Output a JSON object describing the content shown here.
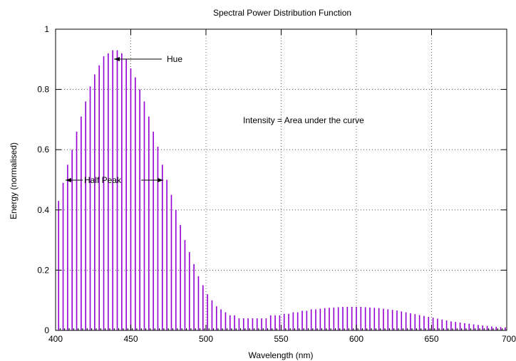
{
  "chart_data": {
    "type": "bar",
    "title": "Spectral Power Distribution Function",
    "xlabel": "Wavelength (nm)",
    "ylabel": "Energy (normalised)",
    "xlim": [
      400,
      700
    ],
    "ylim": [
      0,
      1
    ],
    "xticks": [
      400,
      450,
      500,
      550,
      600,
      650,
      700
    ],
    "yticks": [
      0,
      0.2,
      0.4,
      0.6,
      0.8,
      1
    ],
    "xtick_labels": [
      "400",
      "450",
      "500",
      "550",
      "600",
      "650",
      "700"
    ],
    "ytick_labels": [
      "0",
      "0.2",
      "0.4",
      "0.6",
      "0.8",
      "1"
    ],
    "grid": true,
    "bar_color": "#9400d3",
    "annotations": {
      "hue": "Hue",
      "half_peak": "Half Peak",
      "intensity": "Intensity = Area under the curve"
    },
    "x_step": 3,
    "x": [
      402,
      405,
      408,
      411,
      414,
      417,
      420,
      423,
      426,
      429,
      432,
      435,
      438,
      441,
      444,
      447,
      450,
      453,
      456,
      459,
      462,
      465,
      468,
      471,
      474,
      477,
      480,
      483,
      486,
      489,
      492,
      495,
      498,
      501,
      504,
      507,
      510,
      513,
      516,
      519,
      522,
      525,
      528,
      531,
      534,
      537,
      540,
      543,
      546,
      549,
      552,
      555,
      558,
      561,
      564,
      567,
      570,
      573,
      576,
      579,
      582,
      585,
      588,
      591,
      594,
      597,
      600,
      603,
      606,
      609,
      612,
      615,
      618,
      621,
      624,
      627,
      630,
      633,
      636,
      639,
      642,
      645,
      648,
      651,
      654,
      657,
      660,
      663,
      666,
      669,
      672,
      675,
      678,
      681,
      684,
      687,
      690,
      693,
      696,
      699
    ],
    "values": [
      0.43,
      0.49,
      0.55,
      0.6,
      0.66,
      0.71,
      0.76,
      0.81,
      0.85,
      0.88,
      0.91,
      0.92,
      0.93,
      0.93,
      0.92,
      0.9,
      0.87,
      0.84,
      0.8,
      0.76,
      0.71,
      0.66,
      0.61,
      0.55,
      0.5,
      0.45,
      0.4,
      0.35,
      0.3,
      0.26,
      0.22,
      0.18,
      0.15,
      0.12,
      0.1,
      0.08,
      0.07,
      0.06,
      0.05,
      0.05,
      0.04,
      0.04,
      0.04,
      0.04,
      0.04,
      0.04,
      0.04,
      0.05,
      0.05,
      0.05,
      0.055,
      0.055,
      0.06,
      0.06,
      0.065,
      0.065,
      0.07,
      0.07,
      0.072,
      0.074,
      0.075,
      0.076,
      0.077,
      0.078,
      0.078,
      0.078,
      0.078,
      0.078,
      0.077,
      0.076,
      0.075,
      0.074,
      0.072,
      0.07,
      0.068,
      0.066,
      0.063,
      0.06,
      0.057,
      0.054,
      0.051,
      0.048,
      0.045,
      0.042,
      0.039,
      0.036,
      0.033,
      0.03,
      0.028,
      0.026,
      0.024,
      0.022,
      0.02,
      0.018,
      0.016,
      0.015,
      0.013,
      0.012,
      0.011,
      0.01
    ]
  }
}
